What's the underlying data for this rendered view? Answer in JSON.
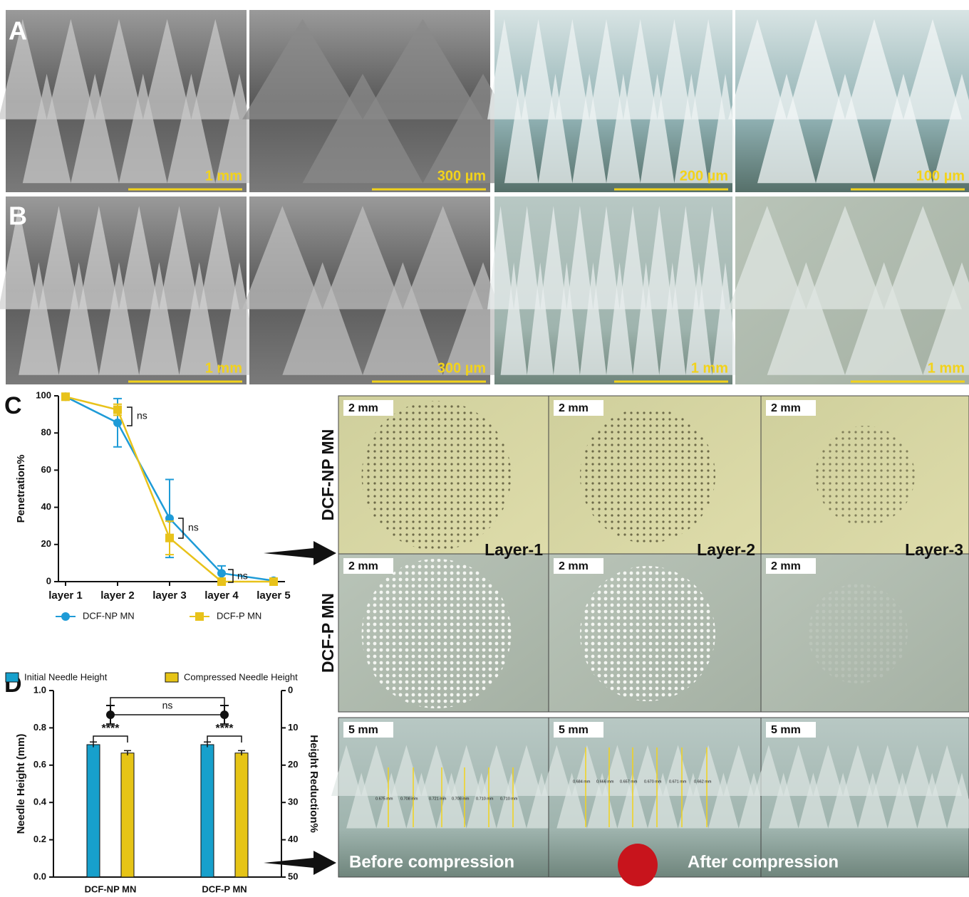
{
  "panels": {
    "A": {
      "label": "A",
      "scale_bars": [
        "1 mm",
        "300 µm",
        "200 µm",
        "100 µm"
      ]
    },
    "B": {
      "label": "B",
      "scale_bars": [
        "1 mm",
        "300 µm",
        "1 mm",
        "1 mm"
      ]
    },
    "C_images": {
      "row_labels": [
        "DCF-NP MN",
        "DCF-P MN"
      ],
      "layer_labels": [
        "Layer-1",
        "Layer-2",
        "Layer-3"
      ],
      "scale_bars": [
        [
          "2 mm",
          "2 mm",
          "2 mm"
        ],
        [
          "2 mm",
          "2 mm",
          "2 mm"
        ]
      ]
    },
    "D_images": {
      "scale_bars": [
        "5 mm",
        "5 mm",
        "5 mm"
      ],
      "before_measurements": [
        "0.675 mm",
        "0.708 mm",
        "0.721 mm",
        "0.708 mm",
        "0.710 mm",
        "0.710 mm"
      ],
      "after_measurements": [
        "0.684 mm",
        "0.666 mm",
        "0.657 mm",
        "0.670 mm",
        "0.671 mm",
        "0.662 mm"
      ],
      "captions": [
        "Before compression",
        "After compression"
      ]
    }
  },
  "chart_data": [
    {
      "type": "line",
      "label": "C",
      "y_label": "Penetration%",
      "categories": [
        "layer 1",
        "layer 2",
        "layer 3",
        "layer 4",
        "layer 5"
      ],
      "ylim": [
        0,
        100
      ],
      "yticks": [
        0,
        20,
        40,
        60,
        80,
        100
      ],
      "legend": "bottom",
      "series": [
        {
          "name": "DCF-NP MN",
          "color": "#1e9bd7",
          "marker": "circle",
          "values": [
            99.5,
            85.5,
            34,
            4.5,
            0.5
          ],
          "errors": [
            0.5,
            13,
            21,
            4,
            0.5
          ]
        },
        {
          "name": "DCF-P MN",
          "color": "#e8c21a",
          "marker": "square",
          "values": [
            99.5,
            92.5,
            23.5,
            0,
            0
          ],
          "errors": [
            0.5,
            3,
            9,
            0.5,
            0
          ]
        }
      ],
      "annotations": [
        "ns",
        "ns",
        "ns"
      ]
    },
    {
      "type": "bar",
      "label": "D",
      "y_label": "Needle Height (mm)",
      "y2_label": "Height Reduction%",
      "categories": [
        "DCF-NP MN",
        "DCF-P MN"
      ],
      "ylim": [
        0,
        1
      ],
      "yticks": [
        {
          "value": 0,
          "label": "0.0"
        },
        0.2,
        0.4,
        0.6,
        0.8,
        {
          "value": 1,
          "label": "1.0"
        }
      ],
      "y2lim": [
        50,
        0
      ],
      "y2ticks": [
        0,
        10,
        20,
        30,
        40,
        50
      ],
      "legend": "top",
      "series": [
        {
          "name": "Initial Needle Height",
          "color": "#17a0cc",
          "values": [
            0.71,
            0.71
          ],
          "errors": [
            0.014,
            0.014
          ]
        },
        {
          "name": "Compressed Needle Height",
          "color": "#e6c416",
          "values": [
            0.665,
            0.665
          ],
          "errors": [
            0.013,
            0.013
          ]
        },
        {
          "axis": "y2",
          "color": "#111111",
          "values": [
            6.5,
            6.5
          ],
          "errors": [
            2.5,
            2.5
          ]
        }
      ],
      "annotations": [
        "****",
        "****",
        "ns"
      ]
    }
  ]
}
